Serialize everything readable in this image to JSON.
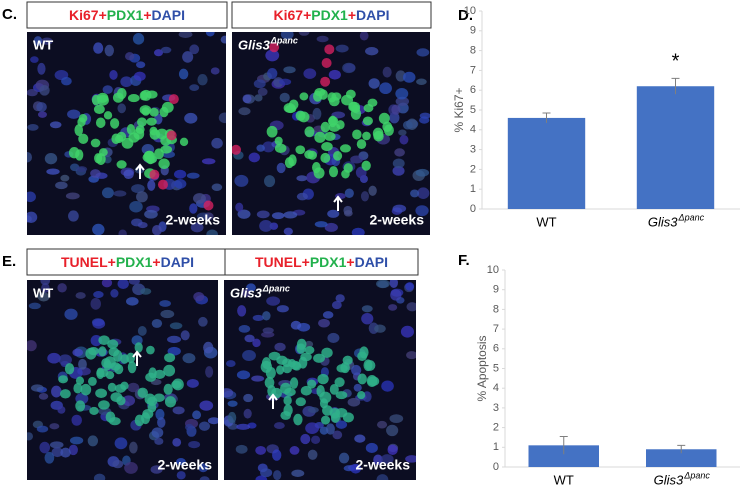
{
  "panels": [
    {
      "letter": "C.",
      "images": [
        {
          "stain": [
            "Ki67",
            "+",
            "PDX1",
            "+",
            "DAPI"
          ],
          "genotype": "WT",
          "timepoint": "2-weeks"
        },
        {
          "stain": [
            "Ki67",
            "+",
            "PDX1",
            "+",
            "DAPI"
          ],
          "genotype": "Glis3",
          "genotype_sup": "Δpanc",
          "timepoint": "2-weeks"
        }
      ]
    },
    {
      "letter": "E.",
      "images": [
        {
          "stain": [
            "TUNEL",
            "+",
            "PDX1",
            "+",
            "DAPI"
          ],
          "genotype": "WT",
          "timepoint": "2-weeks"
        },
        {
          "stain": [
            "TUNEL",
            "+",
            "PDX1",
            "+",
            "DAPI"
          ],
          "genotype": "Glis3",
          "genotype_sup": "Δpanc",
          "timepoint": "2-weeks"
        }
      ]
    }
  ],
  "stain_colors": [
    "#e8202a",
    "#e8202a",
    "#22b14c",
    "#e8202a",
    "#2f4fa8"
  ],
  "chart_data": [
    {
      "type": "bar",
      "letter": "D.",
      "y_label": "% Ki67+",
      "categories": [
        "WT",
        "Glis3"
      ],
      "category_superscripts": [
        "",
        "Δpanc"
      ],
      "values": [
        4.6,
        6.2
      ],
      "errors": [
        0.25,
        0.4
      ],
      "color": "#4472c4",
      "annotations": [
        "",
        "*"
      ],
      "ylim": [
        0,
        10
      ],
      "yticks": [
        0,
        1,
        2,
        3,
        4,
        5,
        6,
        7,
        8,
        9,
        10
      ],
      "grid": false
    },
    {
      "type": "bar",
      "letter": "F.",
      "y_label": "% Apoptosis",
      "categories": [
        "WT",
        "Glis3"
      ],
      "category_superscripts": [
        "",
        "Δpanc"
      ],
      "values": [
        1.1,
        0.9
      ],
      "errors": [
        0.45,
        0.2
      ],
      "color": "#4472c4",
      "annotations": [
        "",
        ""
      ],
      "ylim": [
        0,
        10
      ],
      "yticks": [
        0,
        1,
        2,
        3,
        4,
        5,
        6,
        7,
        8,
        9,
        10
      ],
      "grid": false
    }
  ]
}
